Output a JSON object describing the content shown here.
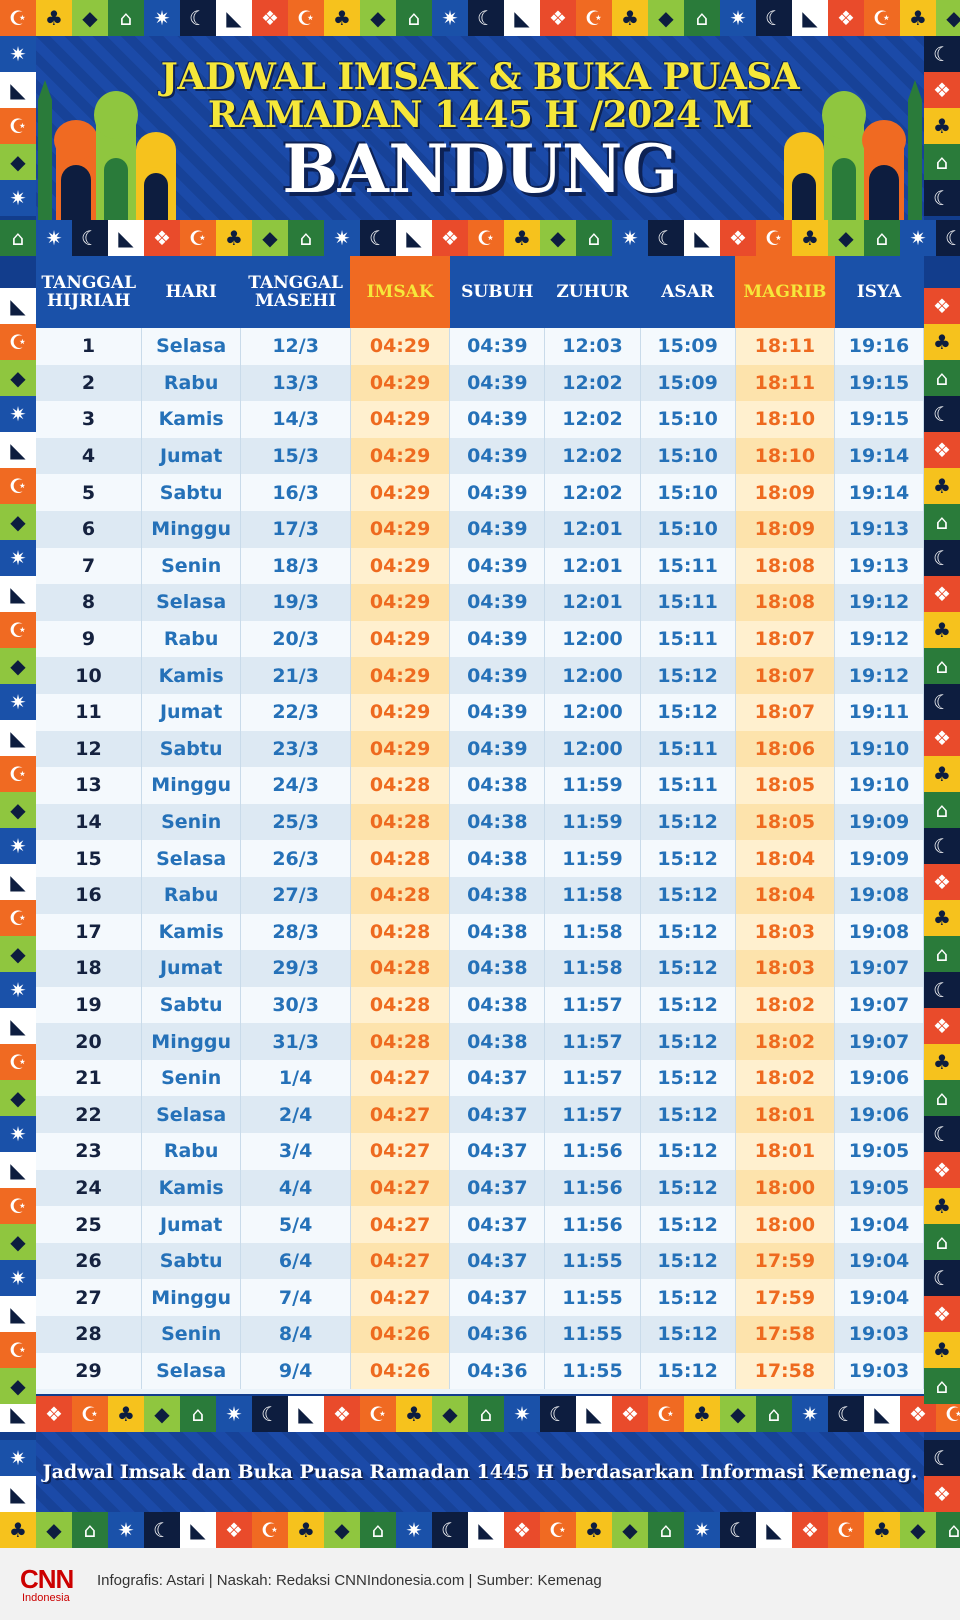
{
  "title": {
    "line1": "JADWAL IMSAK & BUKA PUASA",
    "line2": "RAMADAN 1445 H /2024 M",
    "city": "BANDUNG"
  },
  "colors": {
    "navy": "#123d8c",
    "header_blue": "#1a51a9",
    "orange": "#f06a22",
    "yellow": "#f6e73a",
    "time_blue": "#2571b8",
    "time_orange": "#ee6a1f",
    "border_palette": [
      "#f06a22",
      "#f6c21d",
      "#8fc63f",
      "#2a7b3a",
      "#1a51a9",
      "#0d1d3f",
      "#ffffff",
      "#e94b2b"
    ]
  },
  "border_icons": [
    "crescent-star-icon",
    "palm-tree-icon",
    "diamond-icon",
    "dome-icon",
    "eight-point-star-icon",
    "arch-crescent-icon",
    "triangle-icon",
    "dots-icon"
  ],
  "table": {
    "headers": [
      {
        "key": "hijri",
        "label1": "TANGGAL",
        "label2": "HIJRIAH",
        "highlight": false
      },
      {
        "key": "day",
        "label1": "HARI",
        "label2": "",
        "highlight": false
      },
      {
        "key": "gregorian",
        "label1": "TANGGAL",
        "label2": "MASEHI",
        "highlight": false
      },
      {
        "key": "imsak",
        "label1": "IMSAK",
        "label2": "",
        "highlight": true
      },
      {
        "key": "subuh",
        "label1": "SUBUH",
        "label2": "",
        "highlight": false
      },
      {
        "key": "zuhur",
        "label1": "ZUHUR",
        "label2": "",
        "highlight": false
      },
      {
        "key": "asar",
        "label1": "ASAR",
        "label2": "",
        "highlight": false
      },
      {
        "key": "magrib",
        "label1": "MAGRIB",
        "label2": "",
        "highlight": true
      },
      {
        "key": "isya",
        "label1": "ISYA",
        "label2": "",
        "highlight": false
      }
    ],
    "rows": [
      [
        "1",
        "Selasa",
        "12/3",
        "04:29",
        "04:39",
        "12:03",
        "15:09",
        "18:11",
        "19:16"
      ],
      [
        "2",
        "Rabu",
        "13/3",
        "04:29",
        "04:39",
        "12:02",
        "15:09",
        "18:11",
        "19:15"
      ],
      [
        "3",
        "Kamis",
        "14/3",
        "04:29",
        "04:39",
        "12:02",
        "15:10",
        "18:10",
        "19:15"
      ],
      [
        "4",
        "Jumat",
        "15/3",
        "04:29",
        "04:39",
        "12:02",
        "15:10",
        "18:10",
        "19:14"
      ],
      [
        "5",
        "Sabtu",
        "16/3",
        "04:29",
        "04:39",
        "12:02",
        "15:10",
        "18:09",
        "19:14"
      ],
      [
        "6",
        "Minggu",
        "17/3",
        "04:29",
        "04:39",
        "12:01",
        "15:10",
        "18:09",
        "19:13"
      ],
      [
        "7",
        "Senin",
        "18/3",
        "04:29",
        "04:39",
        "12:01",
        "15:11",
        "18:08",
        "19:13"
      ],
      [
        "8",
        "Selasa",
        "19/3",
        "04:29",
        "04:39",
        "12:01",
        "15:11",
        "18:08",
        "19:12"
      ],
      [
        "9",
        "Rabu",
        "20/3",
        "04:29",
        "04:39",
        "12:00",
        "15:11",
        "18:07",
        "19:12"
      ],
      [
        "10",
        "Kamis",
        "21/3",
        "04:29",
        "04:39",
        "12:00",
        "15:12",
        "18:07",
        "19:12"
      ],
      [
        "11",
        "Jumat",
        "22/3",
        "04:29",
        "04:39",
        "12:00",
        "15:12",
        "18:07",
        "19:11"
      ],
      [
        "12",
        "Sabtu",
        "23/3",
        "04:29",
        "04:39",
        "12:00",
        "15:11",
        "18:06",
        "19:10"
      ],
      [
        "13",
        "Minggu",
        "24/3",
        "04:28",
        "04:38",
        "11:59",
        "15:11",
        "18:05",
        "19:10"
      ],
      [
        "14",
        "Senin",
        "25/3",
        "04:28",
        "04:38",
        "11:59",
        "15:12",
        "18:05",
        "19:09"
      ],
      [
        "15",
        "Selasa",
        "26/3",
        "04:28",
        "04:38",
        "11:59",
        "15:12",
        "18:04",
        "19:09"
      ],
      [
        "16",
        "Rabu",
        "27/3",
        "04:28",
        "04:38",
        "11:58",
        "15:12",
        "18:04",
        "19:08"
      ],
      [
        "17",
        "Kamis",
        "28/3",
        "04:28",
        "04:38",
        "11:58",
        "15:12",
        "18:03",
        "19:08"
      ],
      [
        "18",
        "Jumat",
        "29/3",
        "04:28",
        "04:38",
        "11:58",
        "15:12",
        "18:03",
        "19:07"
      ],
      [
        "19",
        "Sabtu",
        "30/3",
        "04:28",
        "04:38",
        "11:57",
        "15:12",
        "18:02",
        "19:07"
      ],
      [
        "20",
        "Minggu",
        "31/3",
        "04:28",
        "04:38",
        "11:57",
        "15:12",
        "18:02",
        "19:07"
      ],
      [
        "21",
        "Senin",
        "1/4",
        "04:27",
        "04:37",
        "11:57",
        "15:12",
        "18:02",
        "19:06"
      ],
      [
        "22",
        "Selasa",
        "2/4",
        "04:27",
        "04:37",
        "11:57",
        "15:12",
        "18:01",
        "19:06"
      ],
      [
        "23",
        "Rabu",
        "3/4",
        "04:27",
        "04:37",
        "11:56",
        "15:12",
        "18:01",
        "19:05"
      ],
      [
        "24",
        "Kamis",
        "4/4",
        "04:27",
        "04:37",
        "11:56",
        "15:12",
        "18:00",
        "19:05"
      ],
      [
        "25",
        "Jumat",
        "5/4",
        "04:27",
        "04:37",
        "11:56",
        "15:12",
        "18:00",
        "19:04"
      ],
      [
        "26",
        "Sabtu",
        "6/4",
        "04:27",
        "04:37",
        "11:55",
        "15:12",
        "17:59",
        "19:04"
      ],
      [
        "27",
        "Minggu",
        "7/4",
        "04:27",
        "04:37",
        "11:55",
        "15:12",
        "17:59",
        "19:04"
      ],
      [
        "28",
        "Senin",
        "8/4",
        "04:26",
        "04:36",
        "11:55",
        "15:12",
        "17:58",
        "19:03"
      ],
      [
        "29",
        "Selasa",
        "9/4",
        "04:26",
        "04:36",
        "11:55",
        "15:12",
        "17:58",
        "19:03"
      ]
    ]
  },
  "caption": "Jadwal Imsak dan Buka Puasa Ramadan 1445 H berdasarkan Informasi Kemenag.",
  "footer": {
    "logo_main": "CNN",
    "logo_sub": "Indonesia",
    "credit": "Infografis: Astari | Naskah: Redaksi CNNIndonesia.com | Sumber: Kemenag"
  }
}
